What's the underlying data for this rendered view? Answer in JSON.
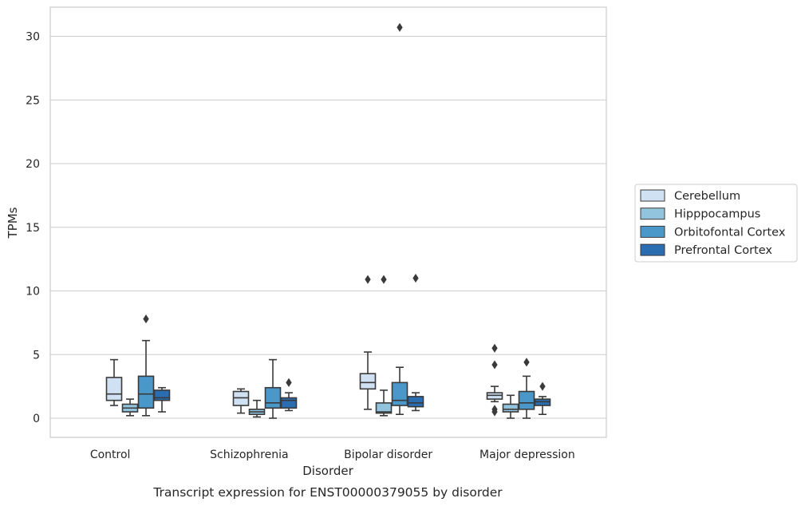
{
  "chart_data": {
    "type": "box",
    "title": "",
    "caption": "Transcript expression for ENST00000379055 by disorder",
    "xlabel": "Disorder",
    "ylabel": "TPMs",
    "ylim": [
      -1.5,
      32.3
    ],
    "yticks": [
      0,
      5,
      10,
      15,
      20,
      25,
      30
    ],
    "grid": "horizontal",
    "legend_position": "right",
    "categories": [
      "Control",
      "Schizophrenia",
      "Bipolar disorder",
      "Major depression"
    ],
    "series": [
      {
        "name": "Cerebellum",
        "color": "#cfe1f2",
        "boxes": [
          {
            "whislo": 1.0,
            "q1": 1.4,
            "med": 1.9,
            "q3": 3.2,
            "whishi": 4.6,
            "fliers": []
          },
          {
            "whislo": 0.4,
            "q1": 1.0,
            "med": 1.6,
            "q3": 2.1,
            "whishi": 2.3,
            "fliers": []
          },
          {
            "whislo": 0.7,
            "q1": 2.3,
            "med": 2.8,
            "q3": 3.5,
            "whishi": 5.2,
            "fliers": [
              10.9
            ]
          },
          {
            "whislo": 1.3,
            "q1": 1.5,
            "med": 1.8,
            "q3": 2.0,
            "whishi": 2.5,
            "fliers": [
              5.5,
              4.2,
              0.7,
              0.5
            ]
          }
        ]
      },
      {
        "name": "Hipppocampus",
        "color": "#93c4de",
        "boxes": [
          {
            "whislo": 0.2,
            "q1": 0.5,
            "med": 0.8,
            "q3": 1.1,
            "whishi": 1.5,
            "fliers": []
          },
          {
            "whislo": 0.1,
            "q1": 0.3,
            "med": 0.5,
            "q3": 0.7,
            "whishi": 1.4,
            "fliers": []
          },
          {
            "whislo": 0.2,
            "q1": 0.4,
            "med": 0.5,
            "q3": 1.2,
            "whishi": 2.2,
            "fliers": [
              10.9
            ]
          },
          {
            "whislo": 0.0,
            "q1": 0.5,
            "med": 0.7,
            "q3": 1.1,
            "whishi": 1.8,
            "fliers": []
          }
        ]
      },
      {
        "name": "Orbitofontal Cortex",
        "color": "#4a98c9",
        "boxes": [
          {
            "whislo": 0.2,
            "q1": 0.8,
            "med": 1.9,
            "q3": 3.3,
            "whishi": 6.1,
            "fliers": [
              7.8
            ]
          },
          {
            "whislo": 0.0,
            "q1": 0.8,
            "med": 1.2,
            "q3": 2.4,
            "whishi": 4.6,
            "fliers": []
          },
          {
            "whislo": 0.3,
            "q1": 1.0,
            "med": 1.4,
            "q3": 2.8,
            "whishi": 4.0,
            "fliers": [
              30.7
            ]
          },
          {
            "whislo": 0.0,
            "q1": 0.7,
            "med": 1.2,
            "q3": 2.1,
            "whishi": 3.3,
            "fliers": [
              4.4
            ]
          }
        ]
      },
      {
        "name": "Prefrontal Cortex",
        "color": "#2a6db1",
        "boxes": [
          {
            "whislo": 0.5,
            "q1": 1.4,
            "med": 1.6,
            "q3": 2.2,
            "whishi": 2.4,
            "fliers": []
          },
          {
            "whislo": 0.6,
            "q1": 0.8,
            "med": 1.4,
            "q3": 1.6,
            "whishi": 2.0,
            "fliers": [
              2.8
            ]
          },
          {
            "whislo": 0.6,
            "q1": 0.9,
            "med": 1.2,
            "q3": 1.7,
            "whishi": 2.0,
            "fliers": [
              11.0
            ]
          },
          {
            "whislo": 0.3,
            "q1": 1.0,
            "med": 1.3,
            "q3": 1.5,
            "whishi": 1.7,
            "fliers": [
              2.5
            ]
          }
        ]
      }
    ]
  },
  "colors": {
    "grid": "#cccccc",
    "frame": "#cccccc",
    "line": "#3a3a3a",
    "text": "#262626"
  }
}
